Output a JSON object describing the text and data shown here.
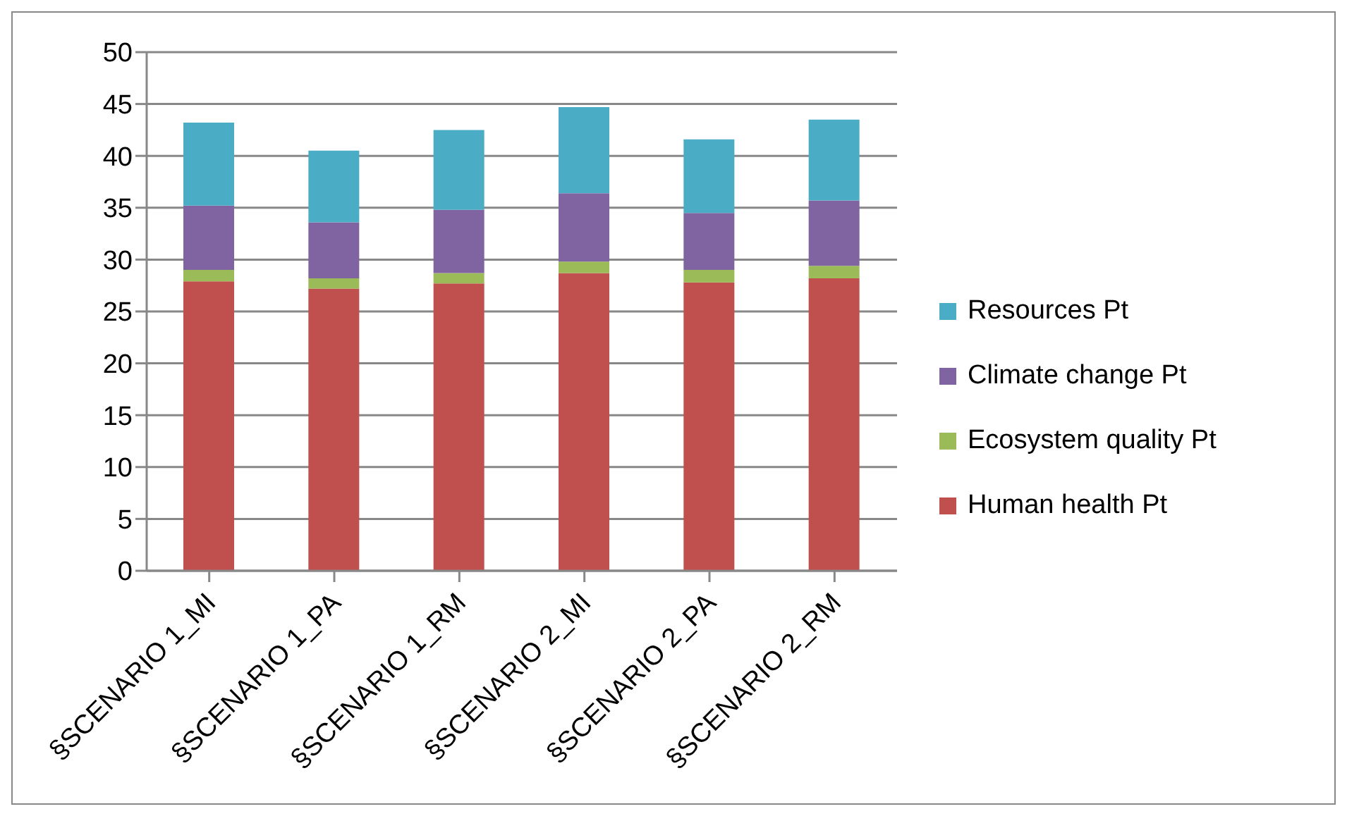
{
  "chart_data": {
    "type": "bar",
    "stacked": true,
    "categories": [
      "§SCENARIO 1_MI",
      "§SCENARIO 1_PA",
      "§SCENARIO 1_RM",
      "§SCENARIO 2_MI",
      "§SCENARIO 2_PA",
      "§SCENARIO 2_RM"
    ],
    "series": [
      {
        "name": "Human health Pt",
        "color": "#c0504d",
        "values": [
          27.9,
          27.2,
          27.7,
          28.7,
          27.8,
          28.2
        ]
      },
      {
        "name": "Ecosystem quality Pt",
        "color": "#9bbb59",
        "values": [
          1.1,
          1.0,
          1.0,
          1.1,
          1.2,
          1.2
        ]
      },
      {
        "name": "Climate change Pt",
        "color": "#8064a2",
        "values": [
          6.2,
          5.4,
          6.1,
          6.6,
          5.5,
          6.3
        ]
      },
      {
        "name": "Resources Pt",
        "color": "#4bacc6",
        "values": [
          8.0,
          6.9,
          7.7,
          8.3,
          7.1,
          7.8
        ]
      }
    ],
    "ylim": [
      0,
      50
    ],
    "yticks": [
      0,
      5,
      10,
      15,
      20,
      25,
      30,
      35,
      40,
      45,
      50
    ],
    "grid": "y",
    "legend": "right"
  }
}
